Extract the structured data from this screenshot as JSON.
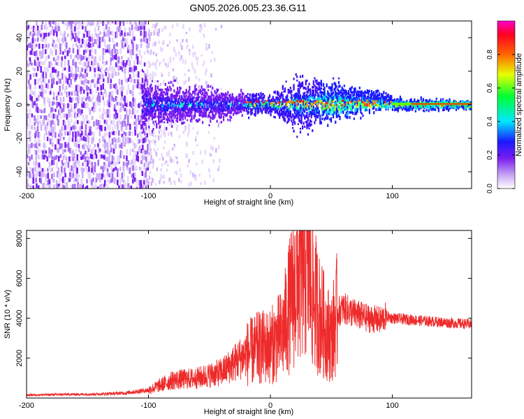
{
  "title": "GN05.2026.005.23.36.G11",
  "colors": {
    "snr_line": "#ee2a2a",
    "dense_region": "#7a1df0",
    "axis": "#000000"
  },
  "chart_data": [
    {
      "type": "heatmap",
      "name": "spectrogram",
      "xlabel": "Height of straight line (km)",
      "ylabel": "Frequency (Hz)",
      "xlim": [
        -200,
        165
      ],
      "ylim": [
        -50,
        50
      ],
      "xticks": [
        -200,
        -100,
        0,
        100
      ],
      "yticks": [
        -40,
        -20,
        0,
        20,
        40
      ],
      "colorbar": {
        "label": "Normalized spectral amplitude",
        "range": [
          0,
          1
        ],
        "ticks": [
          "0.0",
          "0.2",
          "0.4",
          "0.6",
          "0.8"
        ],
        "tick_values": [
          0.0,
          0.2,
          0.4,
          0.6,
          0.8
        ]
      },
      "description_points": [
        {
          "x": -150,
          "spread": 50
        },
        {
          "x": -100,
          "spread": 10
        },
        {
          "x": 0,
          "spread": 4
        },
        {
          "x": 25,
          "spread": 12
        },
        {
          "x": 100,
          "spread": 3
        },
        {
          "x": 160,
          "spread": 2
        }
      ]
    },
    {
      "type": "line",
      "name": "snr",
      "xlabel": "Height of straight line (km)",
      "ylabel": "SNR (10 * v/v)",
      "xlim": [
        -200,
        165
      ],
      "ylim": [
        0,
        8400
      ],
      "xticks": [
        -200,
        -100,
        0,
        100
      ],
      "yticks": [
        2000,
        4000,
        6000,
        8000
      ],
      "series": [
        {
          "name": "SNR",
          "x": [
            -200,
            -170,
            -140,
            -120,
            -100,
            -80,
            -60,
            -40,
            -20,
            -10,
            0,
            10,
            15,
            20,
            25,
            30,
            35,
            40,
            45,
            50,
            55,
            60,
            70,
            80,
            90,
            95,
            100,
            120,
            140,
            165
          ],
          "values": [
            150,
            180,
            200,
            250,
            400,
            900,
            1000,
            1300,
            2200,
            2500,
            2600,
            3200,
            4500,
            5500,
            6500,
            7000,
            5200,
            4200,
            3500,
            3000,
            4300,
            4500,
            4200,
            4000,
            3900,
            4100,
            4000,
            3900,
            3800,
            3700
          ]
        }
      ]
    }
  ]
}
